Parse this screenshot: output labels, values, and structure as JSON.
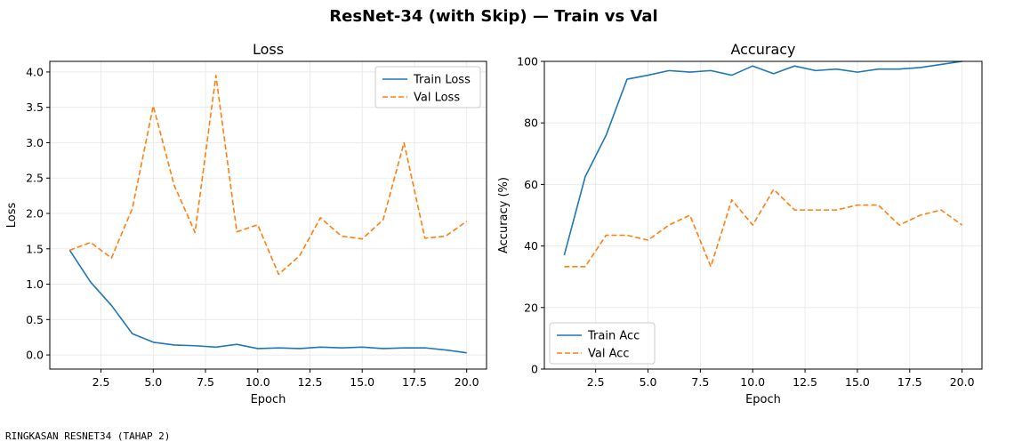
{
  "figure": {
    "title": "ResNet-34 (with Skip) — Train vs Val"
  },
  "footer_text": "RINGKASAN RESNET34 (TAHAP 2)",
  "chart_data": [
    {
      "type": "line",
      "title": "Loss",
      "xlabel": "Epoch",
      "ylabel": "Loss",
      "xlim": [
        0.05,
        20.95
      ],
      "ylim": [
        -0.2,
        4.15
      ],
      "xticks": [
        2.5,
        5.0,
        7.5,
        10.0,
        12.5,
        15.0,
        17.5,
        20.0
      ],
      "yticks": [
        0.0,
        0.5,
        1.0,
        1.5,
        2.0,
        2.5,
        3.0,
        3.5,
        4.0
      ],
      "grid": true,
      "legend_position": "upper right",
      "x": [
        1,
        2,
        3,
        4,
        5,
        6,
        7,
        8,
        9,
        10,
        11,
        12,
        13,
        14,
        15,
        16,
        17,
        18,
        19,
        20
      ],
      "series": [
        {
          "name": "Train Loss",
          "color": "#1f77b4",
          "style": "solid",
          "values": [
            1.48,
            1.03,
            0.7,
            0.3,
            0.18,
            0.14,
            0.13,
            0.11,
            0.15,
            0.09,
            0.1,
            0.09,
            0.11,
            0.1,
            0.11,
            0.09,
            0.1,
            0.1,
            0.07,
            0.03
          ]
        },
        {
          "name": "Val Loss",
          "color": "#ff7f0e",
          "style": "dashed",
          "values": [
            1.48,
            1.59,
            1.37,
            2.07,
            3.52,
            2.4,
            1.73,
            3.95,
            1.74,
            1.84,
            1.14,
            1.4,
            1.94,
            1.68,
            1.64,
            1.91,
            3.0,
            1.65,
            1.68,
            1.89
          ]
        }
      ]
    },
    {
      "type": "line",
      "title": "Accuracy",
      "xlabel": "Epoch",
      "ylabel": "Accuracy (%)",
      "xlim": [
        0.05,
        20.95
      ],
      "ylim": [
        0,
        100
      ],
      "xticks": [
        2.5,
        5.0,
        7.5,
        10.0,
        12.5,
        15.0,
        17.5,
        20.0
      ],
      "yticks": [
        0,
        20,
        40,
        60,
        80,
        100
      ],
      "grid": true,
      "legend_position": "lower left",
      "x": [
        1,
        2,
        3,
        4,
        5,
        6,
        7,
        8,
        9,
        10,
        11,
        12,
        13,
        14,
        15,
        16,
        17,
        18,
        19,
        20
      ],
      "series": [
        {
          "name": "Train Acc",
          "color": "#1f77b4",
          "style": "solid",
          "values": [
            37.0,
            62.5,
            76.0,
            94.2,
            95.5,
            97.0,
            96.5,
            97.0,
            95.5,
            98.5,
            96.0,
            98.5,
            97.0,
            97.5,
            96.5,
            97.5,
            97.5,
            98.0,
            99.0,
            100.0
          ]
        },
        {
          "name": "Val Acc",
          "color": "#ff7f0e",
          "style": "dashed",
          "values": [
            33.3,
            33.3,
            43.5,
            43.5,
            41.9,
            46.8,
            50.0,
            33.3,
            55.0,
            46.8,
            58.4,
            51.7,
            51.7,
            51.7,
            53.3,
            53.3,
            46.8,
            50.0,
            51.7,
            46.8
          ]
        }
      ]
    }
  ]
}
